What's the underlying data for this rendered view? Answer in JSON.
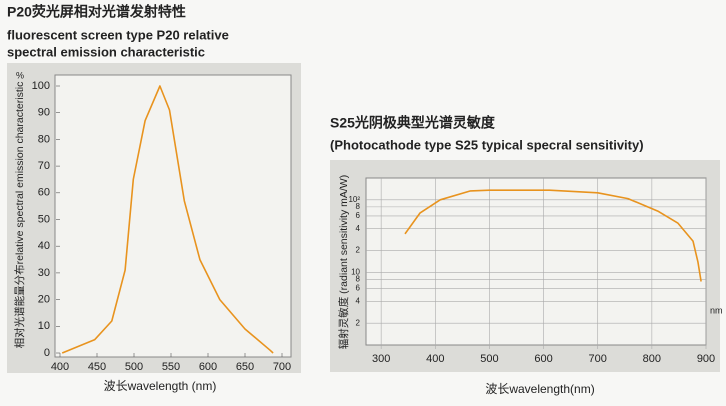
{
  "chart_data": [
    {
      "type": "line",
      "title": "P20荧光屏相对光谱发射特性",
      "subtitle": [
        "fluorescent screen type P20 relative",
        "spectral emission characteristic"
      ],
      "y_unit": "%",
      "ylabel": "相对光谱能量分布relative spectral emission characteristic",
      "xlabel": "波长wavelength (nm)",
      "x": [
        403,
        447,
        470,
        488,
        499,
        515,
        535,
        548,
        568,
        589,
        616,
        650,
        684,
        688
      ],
      "values": [
        0,
        5,
        12,
        31,
        65,
        87,
        100,
        91,
        57,
        35,
        20,
        9,
        1,
        0
      ],
      "color": "#e8931e",
      "xlim": [
        400,
        700
      ],
      "xticks": [
        400,
        450,
        500,
        550,
        600,
        650,
        700
      ],
      "ylim": [
        0,
        100
      ],
      "yticks": [
        0,
        10,
        20,
        30,
        40,
        50,
        60,
        70,
        80,
        90,
        100
      ],
      "grid": false,
      "log_y": false
    },
    {
      "type": "line",
      "title": "S25光阴极典型光谱灵敏度",
      "subtitle": [
        "(Photocathode type S25 typical specral sensitivity)"
      ],
      "ylabel": "辐射灵敏度 (radiant sensitivity mA/W)",
      "xlabel": "波长wavelength(nm)",
      "x_unit": "nm",
      "x": [
        344,
        372,
        409,
        465,
        500,
        611,
        700,
        756,
        811,
        848,
        876,
        885,
        891
      ],
      "values": [
        34,
        66,
        100,
        133,
        136,
        136,
        125,
        104,
        70,
        48,
        27,
        14,
        7.5
      ],
      "color": "#e8931e",
      "xlim": [
        272,
        900
      ],
      "xticks": [
        300,
        400,
        500,
        600,
        700,
        800,
        900
      ],
      "ylim": [
        1,
        200
      ],
      "yticks": [
        {
          "value": 100,
          "label": "10²"
        },
        {
          "value": 80,
          "label": "8"
        },
        {
          "value": 60,
          "label": "6"
        },
        {
          "value": 40,
          "label": "4"
        },
        {
          "value": 20,
          "label": "2"
        },
        10,
        8,
        6,
        4,
        2
      ],
      "grid": true,
      "log_y": true
    }
  ]
}
